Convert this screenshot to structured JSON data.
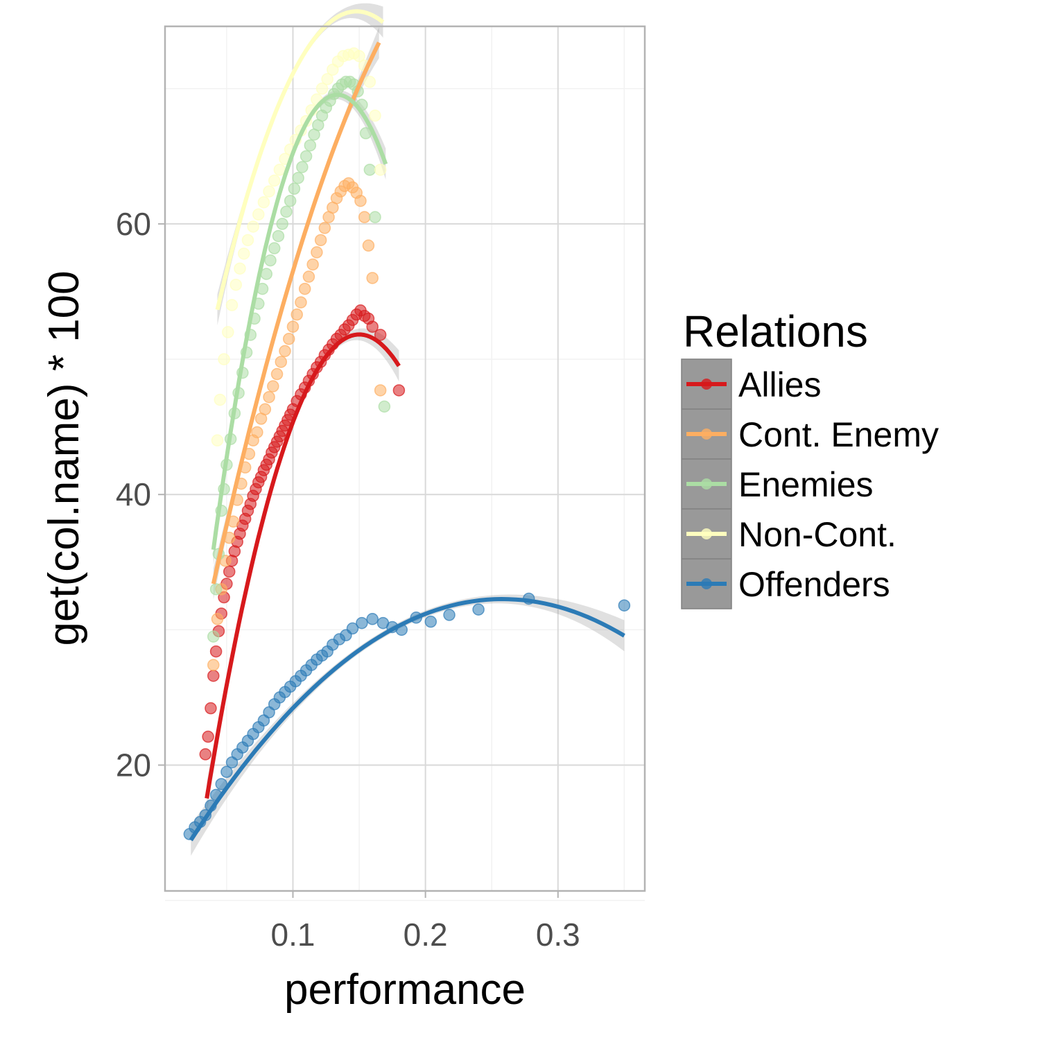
{
  "chart_data": {
    "type": "scatter",
    "xlabel": "performance",
    "ylabel": "get(col.name) * 100",
    "xlim": [
      0.0035,
      0.3655
    ],
    "ylim": [
      10.7,
      74.6
    ],
    "x_ticks": [
      0.1,
      0.2,
      0.3
    ],
    "x_tick_labels": [
      "0.1",
      "0.2",
      "0.3"
    ],
    "y_ticks": [
      20,
      40,
      60
    ],
    "y_tick_labels": [
      "20",
      "40",
      "60"
    ],
    "grid": true,
    "legend": {
      "title": "Relations",
      "placement": "right"
    },
    "series": [
      {
        "name": "Allies",
        "color": "#d7191c",
        "points": [
          [
            0.034,
            20.8
          ],
          [
            0.036,
            22.1
          ],
          [
            0.038,
            24.2
          ],
          [
            0.04,
            26.6
          ],
          [
            0.042,
            28.4
          ],
          [
            0.044,
            29.9
          ],
          [
            0.046,
            31.2
          ],
          [
            0.048,
            32.4
          ],
          [
            0.05,
            33.4
          ],
          [
            0.052,
            34.3
          ],
          [
            0.054,
            35.1
          ],
          [
            0.056,
            35.8
          ],
          [
            0.058,
            36.5
          ],
          [
            0.06,
            37.1
          ],
          [
            0.062,
            37.7
          ],
          [
            0.064,
            38.2
          ],
          [
            0.066,
            38.8
          ],
          [
            0.068,
            39.3
          ],
          [
            0.07,
            39.9
          ],
          [
            0.072,
            40.4
          ],
          [
            0.074,
            40.9
          ],
          [
            0.076,
            41.3
          ],
          [
            0.078,
            41.8
          ],
          [
            0.08,
            42.2
          ],
          [
            0.082,
            42.6
          ],
          [
            0.084,
            43.1
          ],
          [
            0.086,
            43.5
          ],
          [
            0.088,
            43.9
          ],
          [
            0.09,
            44.3
          ],
          [
            0.092,
            44.7
          ],
          [
            0.094,
            45.1
          ],
          [
            0.096,
            45.5
          ],
          [
            0.098,
            45.9
          ],
          [
            0.1,
            46.3
          ],
          [
            0.103,
            46.9
          ],
          [
            0.106,
            47.4
          ],
          [
            0.109,
            47.9
          ],
          [
            0.112,
            48.4
          ],
          [
            0.115,
            48.9
          ],
          [
            0.118,
            49.4
          ],
          [
            0.121,
            49.8
          ],
          [
            0.124,
            50.3
          ],
          [
            0.127,
            50.7
          ],
          [
            0.13,
            51.1
          ],
          [
            0.133,
            51.5
          ],
          [
            0.136,
            51.8
          ],
          [
            0.139,
            52.2
          ],
          [
            0.142,
            52.5
          ],
          [
            0.145,
            52.9
          ],
          [
            0.148,
            53.3
          ],
          [
            0.151,
            53.6
          ],
          [
            0.154,
            53.2
          ],
          [
            0.157,
            53.0
          ],
          [
            0.16,
            52.4
          ],
          [
            0.166,
            51.8
          ],
          [
            0.18,
            47.7
          ]
        ],
        "fit_x": [
          0.035,
          0.18
        ],
        "fit_coef": [
          -6.5,
          777.5,
          -2591
        ]
      },
      {
        "name": "Cont. Enemy",
        "color": "#fdae61",
        "points": [
          [
            0.04,
            27.4
          ],
          [
            0.043,
            30.8
          ],
          [
            0.046,
            33.0
          ],
          [
            0.049,
            35.1
          ],
          [
            0.052,
            36.8
          ],
          [
            0.055,
            38.0
          ],
          [
            0.058,
            39.6
          ],
          [
            0.061,
            40.8
          ],
          [
            0.064,
            42.0
          ],
          [
            0.067,
            43.0
          ],
          [
            0.07,
            44.0
          ],
          [
            0.073,
            44.6
          ],
          [
            0.076,
            45.6
          ],
          [
            0.079,
            46.3
          ],
          [
            0.082,
            47.2
          ],
          [
            0.085,
            48.0
          ],
          [
            0.088,
            48.9
          ],
          [
            0.091,
            49.8
          ],
          [
            0.094,
            50.6
          ],
          [
            0.097,
            51.5
          ],
          [
            0.1,
            52.4
          ],
          [
            0.103,
            53.3
          ],
          [
            0.106,
            54.2
          ],
          [
            0.109,
            55.2
          ],
          [
            0.112,
            56.1
          ],
          [
            0.115,
            57.0
          ],
          [
            0.118,
            57.9
          ],
          [
            0.121,
            58.8
          ],
          [
            0.124,
            59.7
          ],
          [
            0.127,
            60.5
          ],
          [
            0.13,
            61.2
          ],
          [
            0.133,
            61.9
          ],
          [
            0.136,
            62.4
          ],
          [
            0.139,
            62.8
          ],
          [
            0.142,
            63.0
          ],
          [
            0.145,
            62.7
          ],
          [
            0.148,
            62.3
          ],
          [
            0.151,
            61.7
          ],
          [
            0.154,
            60.5
          ],
          [
            0.157,
            58.4
          ],
          [
            0.16,
            56.0
          ],
          [
            0.166,
            47.7
          ]
        ],
        "fit_x": [
          0.04,
          0.165
        ],
        "fit_coef": [
          14.0,
          525.0,
          -1000
        ]
      },
      {
        "name": "Enemies",
        "color": "#abdda4",
        "points": [
          [
            0.04,
            29.5
          ],
          [
            0.042,
            33.0
          ],
          [
            0.044,
            35.6
          ],
          [
            0.046,
            38.8
          ],
          [
            0.048,
            40.4
          ],
          [
            0.05,
            42.2
          ],
          [
            0.053,
            44.1
          ],
          [
            0.056,
            46.0
          ],
          [
            0.059,
            47.5
          ],
          [
            0.062,
            49.0
          ],
          [
            0.065,
            50.5
          ],
          [
            0.068,
            51.8
          ],
          [
            0.071,
            53.0
          ],
          [
            0.074,
            54.1
          ],
          [
            0.077,
            55.2
          ],
          [
            0.08,
            56.3
          ],
          [
            0.083,
            57.3
          ],
          [
            0.086,
            58.2
          ],
          [
            0.089,
            59.1
          ],
          [
            0.092,
            60.0
          ],
          [
            0.095,
            60.9
          ],
          [
            0.098,
            61.7
          ],
          [
            0.101,
            62.6
          ],
          [
            0.104,
            63.4
          ],
          [
            0.107,
            64.2
          ],
          [
            0.11,
            65.0
          ],
          [
            0.113,
            65.8
          ],
          [
            0.116,
            66.6
          ],
          [
            0.119,
            67.3
          ],
          [
            0.122,
            68.0
          ],
          [
            0.125,
            68.6
          ],
          [
            0.128,
            69.1
          ],
          [
            0.131,
            69.6
          ],
          [
            0.134,
            70.0
          ],
          [
            0.137,
            70.3
          ],
          [
            0.14,
            70.5
          ],
          [
            0.143,
            70.5
          ],
          [
            0.146,
            70.3
          ],
          [
            0.149,
            69.8
          ],
          [
            0.152,
            68.8
          ],
          [
            0.155,
            66.7
          ],
          [
            0.158,
            64.0
          ],
          [
            0.162,
            60.5
          ],
          [
            0.169,
            46.5
          ]
        ],
        "fit_x": [
          0.04,
          0.17
        ],
        "fit_coef": [
          1.0,
          1026.9,
          -3846
        ]
      },
      {
        "name": "Non-Cont.",
        "color": "#ffffbf",
        "points": [
          [
            0.043,
            44.0
          ],
          [
            0.045,
            47.0
          ],
          [
            0.048,
            50.0
          ],
          [
            0.051,
            52.0
          ],
          [
            0.054,
            54.0
          ],
          [
            0.057,
            55.5
          ],
          [
            0.06,
            56.7
          ],
          [
            0.063,
            57.8
          ],
          [
            0.066,
            58.8
          ],
          [
            0.07,
            59.8
          ],
          [
            0.074,
            60.7
          ],
          [
            0.078,
            61.6
          ],
          [
            0.082,
            62.4
          ],
          [
            0.086,
            63.2
          ],
          [
            0.09,
            64.0
          ],
          [
            0.094,
            64.8
          ],
          [
            0.098,
            65.5
          ],
          [
            0.102,
            66.2
          ],
          [
            0.106,
            66.9
          ],
          [
            0.11,
            67.6
          ],
          [
            0.114,
            68.4
          ],
          [
            0.118,
            69.2
          ],
          [
            0.122,
            70.0
          ],
          [
            0.126,
            70.7
          ],
          [
            0.13,
            71.4
          ],
          [
            0.134,
            72.0
          ],
          [
            0.138,
            72.4
          ],
          [
            0.142,
            72.5
          ],
          [
            0.146,
            72.6
          ],
          [
            0.15,
            72.4
          ],
          [
            0.154,
            71.7
          ],
          [
            0.158,
            70.5
          ],
          [
            0.162,
            68.0
          ],
          [
            0.166,
            64.0
          ]
        ],
        "fit_x": [
          0.043,
          0.168
        ],
        "fit_coef": [
          31.9,
          592.0,
          -2000
        ]
      },
      {
        "name": "Offenders",
        "color": "#2c7bb6",
        "points": [
          [
            0.022,
            14.9
          ],
          [
            0.026,
            15.4
          ],
          [
            0.03,
            15.8
          ],
          [
            0.034,
            16.3
          ],
          [
            0.038,
            17.0
          ],
          [
            0.042,
            17.8
          ],
          [
            0.046,
            18.6
          ],
          [
            0.05,
            19.5
          ],
          [
            0.054,
            20.2
          ],
          [
            0.058,
            20.8
          ],
          [
            0.062,
            21.3
          ],
          [
            0.066,
            21.8
          ],
          [
            0.07,
            22.3
          ],
          [
            0.074,
            22.8
          ],
          [
            0.078,
            23.3
          ],
          [
            0.082,
            23.9
          ],
          [
            0.086,
            24.5
          ],
          [
            0.09,
            25.0
          ],
          [
            0.094,
            25.4
          ],
          [
            0.098,
            25.8
          ],
          [
            0.102,
            26.2
          ],
          [
            0.106,
            26.6
          ],
          [
            0.11,
            27.0
          ],
          [
            0.114,
            27.4
          ],
          [
            0.118,
            27.8
          ],
          [
            0.122,
            28.1
          ],
          [
            0.126,
            28.4
          ],
          [
            0.13,
            28.9
          ],
          [
            0.135,
            29.3
          ],
          [
            0.14,
            29.6
          ],
          [
            0.145,
            30.1
          ],
          [
            0.152,
            30.5
          ],
          [
            0.16,
            30.8
          ],
          [
            0.168,
            30.5
          ],
          [
            0.175,
            30.2
          ],
          [
            0.182,
            30.0
          ],
          [
            0.193,
            30.9
          ],
          [
            0.204,
            30.6
          ],
          [
            0.218,
            31.1
          ],
          [
            0.24,
            31.5
          ],
          [
            0.278,
            32.3
          ],
          [
            0.35,
            31.8
          ]
        ],
        "fit_x": [
          0.023,
          0.35
        ],
        "fit_coef": [
          10.8,
          166.3,
          -322
        ]
      }
    ]
  }
}
